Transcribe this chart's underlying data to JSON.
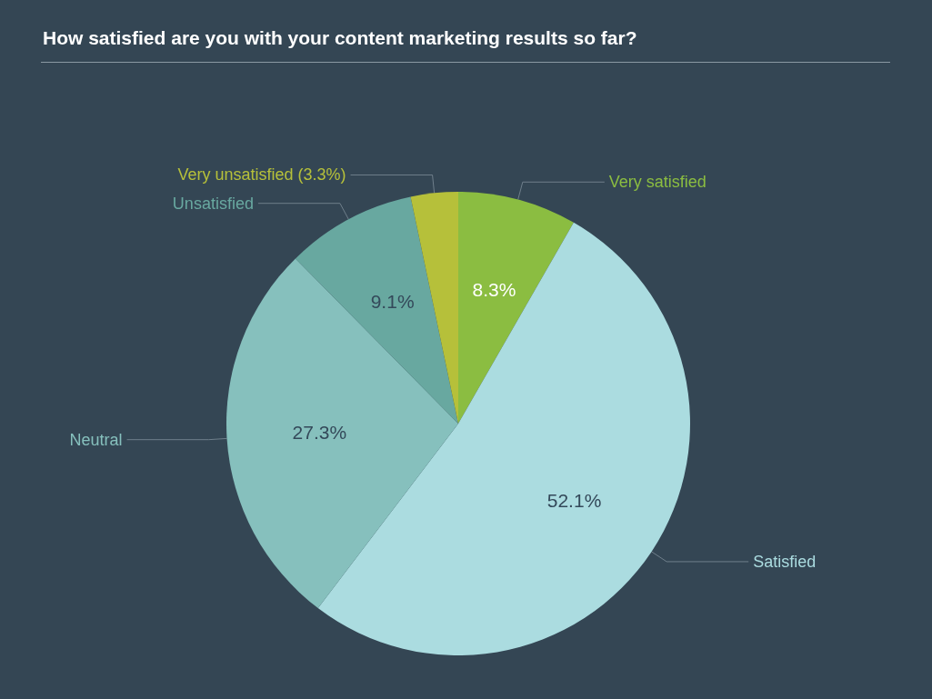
{
  "chart_data": {
    "type": "pie",
    "title": "How satisfied are you with your content marketing results so far?",
    "categories": [
      "Very satisfied",
      "Satisfied",
      "Neutral",
      "Unsatisfied",
      "Very unsatisfied (3.3%)"
    ],
    "values": [
      8.3,
      52.1,
      27.3,
      9.1,
      3.3
    ],
    "colors": [
      "#8bbd41",
      "#abdce0",
      "#86c0bd",
      "#68a8a0",
      "#b6c03a"
    ],
    "value_labels": [
      "8.3%",
      "52.1%",
      "27.3%",
      "9.1%",
      null
    ]
  }
}
